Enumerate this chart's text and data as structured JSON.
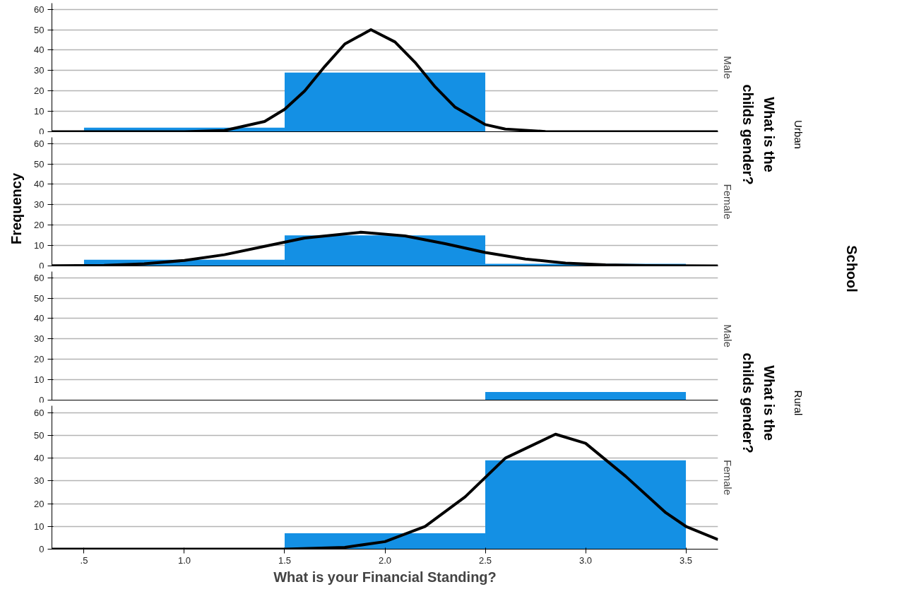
{
  "chart_data": [
    {
      "type": "histogram",
      "title": "Male",
      "ylabel": "Frequency",
      "annotations": [
        "What is the childs gender?",
        "Urban",
        "School"
      ],
      "bins": [
        0.5,
        1.5,
        2.5,
        3.5
      ],
      "values": [
        2,
        29,
        0
      ],
      "color": "#1490e4",
      "series": [
        {
          "type": "line",
          "color": "#000000",
          "x": [
            0.34,
            1.0,
            1.2,
            1.4,
            1.5,
            1.6,
            1.7,
            1.8,
            1.93,
            2.05,
            2.15,
            2.25,
            2.35,
            2.5,
            2.6,
            2.8,
            3.0,
            3.66
          ],
          "values": [
            0,
            0,
            0.6,
            5,
            11,
            20,
            32,
            43,
            50,
            44,
            34,
            22,
            12,
            3.5,
            1.3,
            0.1,
            0,
            0
          ]
        }
      ],
      "xlim": [
        0.34,
        3.66
      ],
      "ylim": [
        0,
        63
      ],
      "yticks": [
        0,
        10,
        20,
        30,
        40,
        50,
        60
      ],
      "grid": "y",
      "tick_labels": "y"
    },
    {
      "type": "histogram",
      "title": "Female",
      "bins": [
        0.5,
        1.5,
        2.5,
        3.5
      ],
      "values": [
        3,
        15,
        1
      ],
      "color": "#1490e4",
      "series": [
        {
          "type": "line",
          "color": "#000000",
          "x": [
            0.34,
            0.6,
            0.8,
            1.0,
            1.2,
            1.4,
            1.6,
            1.88,
            2.1,
            2.3,
            2.5,
            2.7,
            2.9,
            3.1,
            3.3,
            3.66
          ],
          "values": [
            0.1,
            0.3,
            1.0,
            2.7,
            5.5,
            9.6,
            13.7,
            16.5,
            14.7,
            10.9,
            6.6,
            3.4,
            1.4,
            0.5,
            0.2,
            0
          ]
        }
      ],
      "xlim": [
        0.34,
        3.66
      ],
      "ylim": [
        0,
        63
      ],
      "yticks": [
        0,
        10,
        20,
        30,
        40,
        50,
        60
      ],
      "grid": "y",
      "tick_labels": "y"
    },
    {
      "type": "histogram",
      "title": "Male",
      "annotations": [
        "What is the childs gender?",
        "Rural"
      ],
      "bins": [
        0.5,
        1.5,
        2.5,
        3.5
      ],
      "values": [
        0,
        0,
        4
      ],
      "color": "#1490e4",
      "xlim": [
        0.34,
        3.66
      ],
      "ylim": [
        0,
        63
      ],
      "yticks": [
        0,
        10,
        20,
        30,
        40,
        50,
        60
      ],
      "grid": "y",
      "tick_labels": "y"
    },
    {
      "type": "histogram",
      "title": "Female",
      "xlabel": "What is your Financial Standing?",
      "bins": [
        0.5,
        1.5,
        2.5,
        3.5
      ],
      "values": [
        0,
        7,
        39
      ],
      "color": "#1490e4",
      "series": [
        {
          "type": "line",
          "color": "#000000",
          "x": [
            0.34,
            1.5,
            1.8,
            2.0,
            2.2,
            2.4,
            2.6,
            2.85,
            3.0,
            3.2,
            3.4,
            3.5,
            3.66
          ],
          "values": [
            0,
            0,
            0.8,
            3.3,
            10,
            23,
            40,
            50.5,
            46.5,
            32,
            16,
            10,
            4.2
          ]
        }
      ],
      "xlim": [
        0.34,
        3.66
      ],
      "ylim": [
        0,
        63
      ],
      "yticks": [
        0,
        10,
        20,
        30,
        40,
        50,
        60
      ],
      "xticks": [
        {
          "value": 0.5,
          "label": ".5"
        },
        {
          "value": 1.0,
          "label": "1.0"
        },
        {
          "value": 1.5,
          "label": "1.5"
        },
        {
          "value": 2.0,
          "label": "2.0"
        },
        {
          "value": 2.5,
          "label": "2.5"
        },
        {
          "value": 3.0,
          "label": "3.0"
        },
        {
          "value": 3.5,
          "label": "3.5"
        }
      ],
      "grid": "y"
    }
  ]
}
